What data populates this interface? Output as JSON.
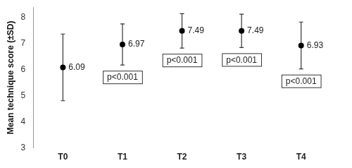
{
  "chart_data": {
    "type": "scatter",
    "y_label": "Mean technique score (±SD)",
    "categories": [
      "T0",
      "T1",
      "T2",
      "T3",
      "T4"
    ],
    "values": [
      6.09,
      6.97,
      7.49,
      7.49,
      6.93
    ],
    "errors": [
      1.28,
      0.79,
      0.66,
      0.64,
      0.9
    ],
    "p_values": [
      null,
      "p<0.001",
      "p<0.001",
      "p<0.001",
      "p<0.001"
    ],
    "color": "#000000",
    "data_labels": true,
    "ylim": [
      3,
      8.4
    ],
    "yticks": [
      3,
      4,
      5,
      6,
      7,
      8
    ],
    "grid": false
  }
}
